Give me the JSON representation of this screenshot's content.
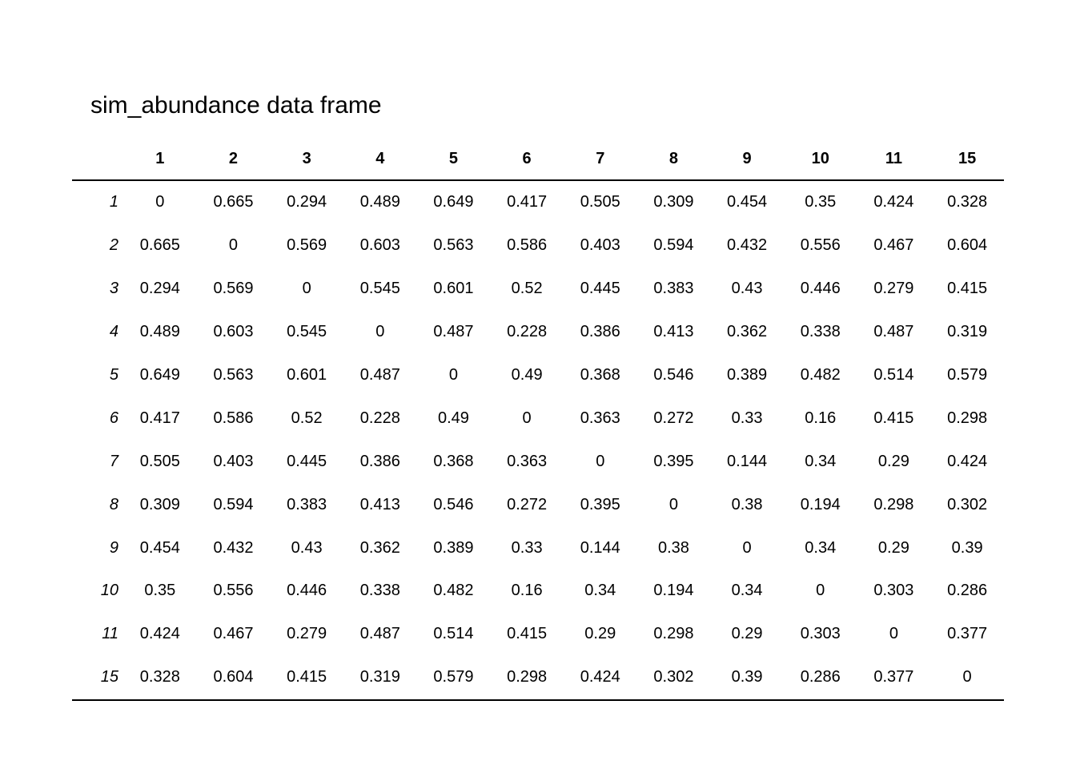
{
  "title": "sim_abundance data frame",
  "table": {
    "columns": [
      "1",
      "2",
      "3",
      "4",
      "5",
      "6",
      "7",
      "8",
      "9",
      "10",
      "11",
      "15"
    ],
    "rows": [
      {
        "name": "1",
        "values": [
          "0",
          "0.665",
          "0.294",
          "0.489",
          "0.649",
          "0.417",
          "0.505",
          "0.309",
          "0.454",
          "0.35",
          "0.424",
          "0.328"
        ]
      },
      {
        "name": "2",
        "values": [
          "0.665",
          "0",
          "0.569",
          "0.603",
          "0.563",
          "0.586",
          "0.403",
          "0.594",
          "0.432",
          "0.556",
          "0.467",
          "0.604"
        ]
      },
      {
        "name": "3",
        "values": [
          "0.294",
          "0.569",
          "0",
          "0.545",
          "0.601",
          "0.52",
          "0.445",
          "0.383",
          "0.43",
          "0.446",
          "0.279",
          "0.415"
        ]
      },
      {
        "name": "4",
        "values": [
          "0.489",
          "0.603",
          "0.545",
          "0",
          "0.487",
          "0.228",
          "0.386",
          "0.413",
          "0.362",
          "0.338",
          "0.487",
          "0.319"
        ]
      },
      {
        "name": "5",
        "values": [
          "0.649",
          "0.563",
          "0.601",
          "0.487",
          "0",
          "0.49",
          "0.368",
          "0.546",
          "0.389",
          "0.482",
          "0.514",
          "0.579"
        ]
      },
      {
        "name": "6",
        "values": [
          "0.417",
          "0.586",
          "0.52",
          "0.228",
          "0.49",
          "0",
          "0.363",
          "0.272",
          "0.33",
          "0.16",
          "0.415",
          "0.298"
        ]
      },
      {
        "name": "7",
        "values": [
          "0.505",
          "0.403",
          "0.445",
          "0.386",
          "0.368",
          "0.363",
          "0",
          "0.395",
          "0.144",
          "0.34",
          "0.29",
          "0.424"
        ]
      },
      {
        "name": "8",
        "values": [
          "0.309",
          "0.594",
          "0.383",
          "0.413",
          "0.546",
          "0.272",
          "0.395",
          "0",
          "0.38",
          "0.194",
          "0.298",
          "0.302"
        ]
      },
      {
        "name": "9",
        "values": [
          "0.454",
          "0.432",
          "0.43",
          "0.362",
          "0.389",
          "0.33",
          "0.144",
          "0.38",
          "0",
          "0.34",
          "0.29",
          "0.39"
        ]
      },
      {
        "name": "10",
        "values": [
          "0.35",
          "0.556",
          "0.446",
          "0.338",
          "0.482",
          "0.16",
          "0.34",
          "0.194",
          "0.34",
          "0",
          "0.303",
          "0.286"
        ]
      },
      {
        "name": "11",
        "values": [
          "0.424",
          "0.467",
          "0.279",
          "0.487",
          "0.514",
          "0.415",
          "0.29",
          "0.298",
          "0.29",
          "0.303",
          "0",
          "0.377"
        ]
      },
      {
        "name": "15",
        "values": [
          "0.328",
          "0.604",
          "0.415",
          "0.319",
          "0.579",
          "0.298",
          "0.424",
          "0.302",
          "0.39",
          "0.286",
          "0.377",
          "0"
        ]
      }
    ]
  }
}
